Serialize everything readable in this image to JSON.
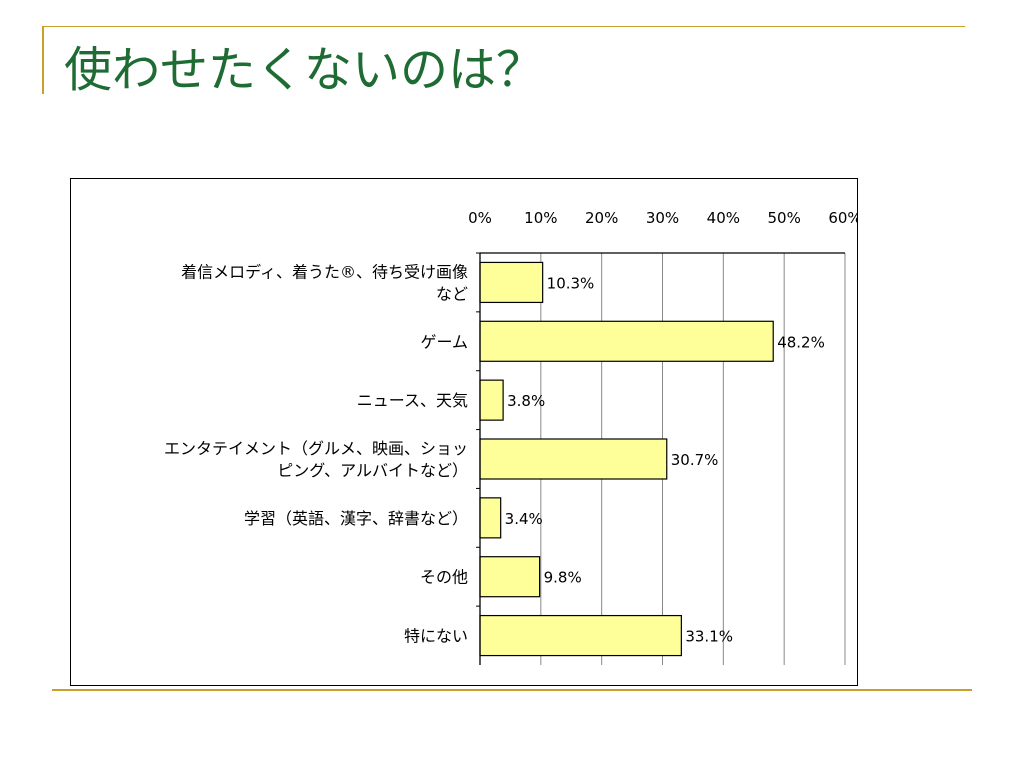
{
  "slide": {
    "title": "使わせたくないのは？"
  },
  "colors": {
    "title": "#1e6b33",
    "rule": "#c7a12a",
    "bar_fill": "#ffff99",
    "bar_stroke": "#000000"
  },
  "chart_data": {
    "type": "bar",
    "orientation": "horizontal",
    "title": "",
    "xlabel": "",
    "ylabel": "",
    "xlim": [
      0,
      60
    ],
    "ticks": [
      "0%",
      "10%",
      "20%",
      "30%",
      "40%",
      "50%",
      "60%"
    ],
    "tick_values": [
      0,
      10,
      20,
      30,
      40,
      50,
      60
    ],
    "tick_position": "top",
    "grid": true,
    "categories": [
      [
        "着信メロディ、着うた®、待ち受け画像",
        "など"
      ],
      [
        "ゲーム"
      ],
      [
        "ニュース、天気"
      ],
      [
        "エンタテイメント（グルメ、映画、ショッ",
        "ピング、アルバイトなど）"
      ],
      [
        "学習（英語、漢字、辞書など）"
      ],
      [
        "その他"
      ],
      [
        "特にない"
      ]
    ],
    "values": [
      10.3,
      48.2,
      3.8,
      30.7,
      3.4,
      9.8,
      33.1
    ],
    "labels": [
      "10.3%",
      "48.2%",
      "3.8%",
      "30.7%",
      "3.4%",
      "9.8%",
      "33.1%"
    ]
  }
}
